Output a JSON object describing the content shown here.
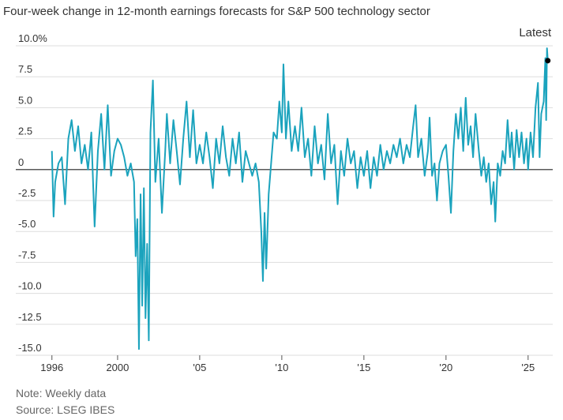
{
  "chart_data": {
    "type": "line",
    "title": "Four-week change in 12-month earnings forecasts for S&P 500 technology sector",
    "annotation": "Latest",
    "note": "Note: Weekly data",
    "source": "Source: LSEG IBES",
    "color": "#1ba3bd",
    "xlim": [
      1993.8,
      2026.5
    ],
    "xticks": [
      1996,
      2000,
      {
        "value": 2005,
        "label": "'05"
      },
      {
        "value": 2010,
        "label": "'10"
      },
      {
        "value": 2015,
        "label": "'15"
      },
      {
        "value": 2020,
        "label": "'20"
      },
      {
        "value": 2025,
        "label": "'25"
      }
    ],
    "ylim": [
      -15,
      10
    ],
    "yticks": [
      {
        "value": 10,
        "label": "10.0%"
      },
      7.5,
      {
        "value": 5,
        "label": "5.0"
      },
      2.5,
      0,
      -2.5,
      {
        "value": -5,
        "label": "-5.0"
      },
      -7.5,
      {
        "value": -10,
        "label": "-10.0"
      },
      -12.5,
      {
        "value": -15,
        "label": "-15.0"
      }
    ],
    "grid": true,
    "x": [
      1996.0,
      1996.1,
      1996.2,
      1996.4,
      1996.6,
      1996.8,
      1997.0,
      1997.2,
      1997.4,
      1997.6,
      1997.8,
      1998.0,
      1998.2,
      1998.4,
      1998.6,
      1998.8,
      1999.0,
      1999.2,
      1999.4,
      1999.6,
      1999.8,
      2000.0,
      2000.2,
      2000.4,
      2000.6,
      2000.8,
      2001.0,
      2001.1,
      2001.2,
      2001.3,
      2001.4,
      2001.5,
      2001.6,
      2001.7,
      2001.8,
      2001.9,
      2002.0,
      2002.15,
      2002.3,
      2002.5,
      2002.7,
      2002.9,
      2003.0,
      2003.2,
      2003.4,
      2003.6,
      2003.8,
      2004.0,
      2004.2,
      2004.4,
      2004.6,
      2004.8,
      2005.0,
      2005.2,
      2005.4,
      2005.6,
      2005.8,
      2006.0,
      2006.2,
      2006.4,
      2006.6,
      2006.8,
      2007.0,
      2007.2,
      2007.4,
      2007.6,
      2007.8,
      2008.0,
      2008.2,
      2008.4,
      2008.6,
      2008.75,
      2008.85,
      2008.95,
      2009.05,
      2009.2,
      2009.35,
      2009.5,
      2009.7,
      2009.85,
      2010.0,
      2010.1,
      2010.25,
      2010.4,
      2010.6,
      2010.8,
      2011.0,
      2011.2,
      2011.4,
      2011.6,
      2011.8,
      2012.0,
      2012.2,
      2012.4,
      2012.6,
      2012.8,
      2013.0,
      2013.2,
      2013.4,
      2013.6,
      2013.8,
      2014.0,
      2014.2,
      2014.4,
      2014.6,
      2014.8,
      2015.0,
      2015.2,
      2015.4,
      2015.6,
      2015.8,
      2016.0,
      2016.2,
      2016.4,
      2016.6,
      2016.8,
      2017.0,
      2017.2,
      2017.4,
      2017.6,
      2017.8,
      2018.0,
      2018.15,
      2018.3,
      2018.5,
      2018.7,
      2018.9,
      2019.0,
      2019.15,
      2019.3,
      2019.45,
      2019.6,
      2019.8,
      2020.0,
      2020.15,
      2020.3,
      2020.45,
      2020.6,
      2020.75,
      2020.9,
      2021.05,
      2021.2,
      2021.35,
      2021.5,
      2021.65,
      2021.8,
      2022.0,
      2022.15,
      2022.3,
      2022.45,
      2022.6,
      2022.75,
      2022.9,
      2023.0,
      2023.15,
      2023.3,
      2023.45,
      2023.6,
      2023.75,
      2023.9,
      2024.0,
      2024.15,
      2024.3,
      2024.45,
      2024.6,
      2024.75,
      2024.9,
      2025.0,
      2025.15,
      2025.3,
      2025.45,
      2025.6,
      2025.7,
      2025.8,
      2025.95,
      2026.05,
      2026.1,
      2026.15,
      2026.2
    ],
    "values": [
      1.5,
      -3.8,
      -1,
      0.5,
      1.0,
      -2.8,
      2.5,
      4.0,
      1.5,
      3.5,
      0.5,
      2.0,
      0,
      3.0,
      -4.6,
      1.5,
      4.5,
      0,
      5.2,
      -0.5,
      1.5,
      2.5,
      2.0,
      1.0,
      -0.5,
      0.5,
      -1.0,
      -7,
      -4,
      -14.5,
      -2,
      -11,
      -1.5,
      -12,
      -6,
      -13.8,
      3,
      7.2,
      -1,
      2.5,
      -3.5,
      1.5,
      4.5,
      0.5,
      4.0,
      1.5,
      -1.2,
      2.5,
      5.5,
      1.0,
      4.8,
      0.5,
      2.0,
      0.5,
      3.0,
      1.0,
      -1.5,
      2.5,
      0.5,
      3.5,
      1.0,
      -0.5,
      2.5,
      0.5,
      3.0,
      -1.0,
      1.5,
      0.5,
      -0.5,
      0.5,
      -1.0,
      -5,
      -9,
      -3.5,
      -8,
      -2,
      0.5,
      3.0,
      2.5,
      5.5,
      3.0,
      8.5,
      2.5,
      5.5,
      1.5,
      3.5,
      1.5,
      5.0,
      1.0,
      2.5,
      -0.5,
      3.5,
      0.5,
      2.0,
      -0.8,
      4.5,
      0.5,
      2.0,
      -2.8,
      1.5,
      -0.5,
      2.5,
      0.5,
      1.5,
      -1.5,
      1.0,
      -0.5,
      1.5,
      -1.5,
      1.0,
      -0.5,
      2.0,
      0,
      1.5,
      0.5,
      2.0,
      1.0,
      2.5,
      0.5,
      2.0,
      1.0,
      3.5,
      5.2,
      1.0,
      2.5,
      -0.5,
      1.5,
      4.2,
      -0.5,
      0.5,
      -2.5,
      0.5,
      1.5,
      2.0,
      -0.5,
      -3.5,
      1.5,
      4.5,
      2.5,
      5.0,
      1.5,
      5.8,
      2.0,
      3.5,
      1.0,
      4.5,
      1.5,
      -0.5,
      1.0,
      -1.0,
      0.5,
      -2.8,
      -1.0,
      -4.2,
      0.5,
      -0.5,
      1.5,
      0.5,
      4.0,
      1.0,
      3.0,
      0,
      3.2,
      1.0,
      3.0,
      0.5,
      2.5,
      0,
      3.0,
      1.0,
      5.0,
      7.0,
      1.0,
      4.5,
      5.5,
      9.0,
      4.0,
      9.8,
      8.8
    ]
  }
}
